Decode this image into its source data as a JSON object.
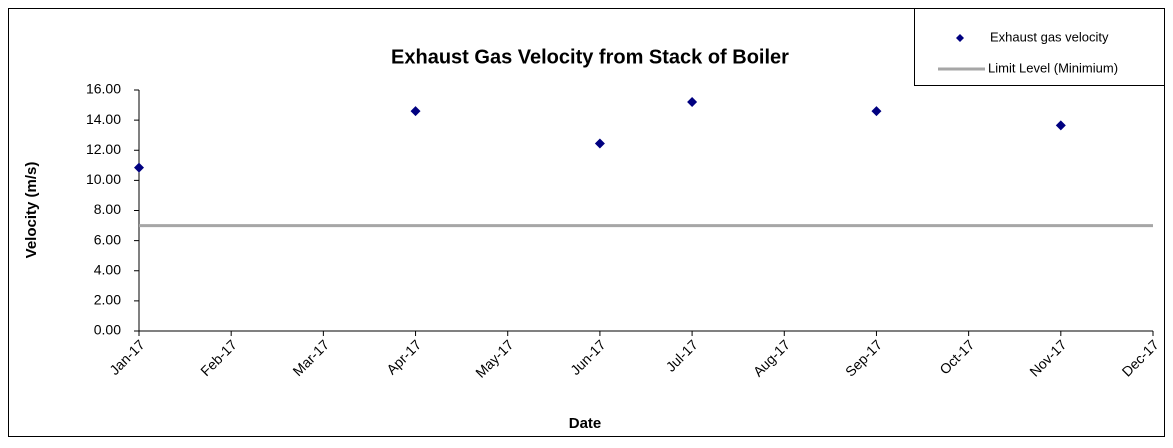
{
  "chart_data": {
    "type": "scatter",
    "title": "Exhaust Gas Velocity from Stack of Boiler",
    "x_label": "Date",
    "y_label": "Velocity (m/s)",
    "categories": [
      "Jan-17",
      "Feb-17",
      "Mar-17",
      "Apr-17",
      "May-17",
      "Jun-17",
      "Jul-17",
      "Aug-17",
      "Sep-17",
      "Oct-17",
      "Nov-17",
      "Dec-17"
    ],
    "series": [
      {
        "name": "Exhaust gas velocity",
        "color": "#000080",
        "mark": "diamond",
        "values": [
          10.85,
          null,
          null,
          14.6,
          null,
          12.45,
          15.2,
          null,
          14.6,
          null,
          13.65,
          null
        ]
      },
      {
        "name": "Limit Level (Minimium)",
        "color": "#a6a6a6",
        "mark": "line",
        "values": [
          7,
          7,
          7,
          7,
          7,
          7,
          7,
          7,
          7,
          7,
          7,
          7
        ]
      }
    ],
    "ylim": [
      0,
      16
    ],
    "yticks": [
      {
        "value": 0,
        "label": "0.00"
      },
      {
        "value": 2,
        "label": "2.00"
      },
      {
        "value": 4,
        "label": "4.00"
      },
      {
        "value": 6,
        "label": "6.00"
      },
      {
        "value": 8,
        "label": "8.00"
      },
      {
        "value": 10,
        "label": "10.00"
      },
      {
        "value": 12,
        "label": "12.00"
      },
      {
        "value": 14,
        "label": "14.00"
      },
      {
        "value": 16,
        "label": "16.00"
      }
    ],
    "grid": false,
    "legend": "top-right"
  }
}
